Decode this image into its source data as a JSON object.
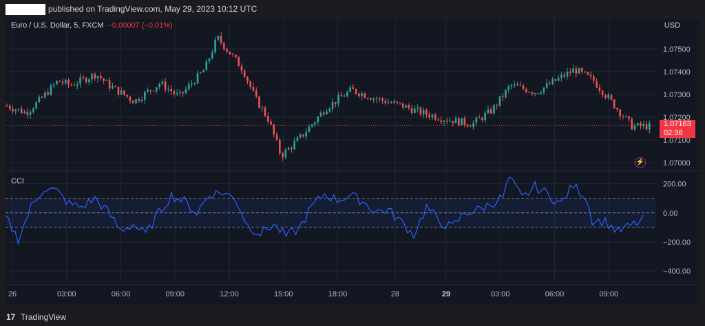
{
  "header": {
    "published_text": "published on TradingView.com, May 29, 2023 10:12 UTC"
  },
  "legend": {
    "symbol": "Euro / U.S. Dollar, 5, FXCM",
    "change": "−0.00007 (−0.01%)",
    "change_color": "#f23645"
  },
  "currency": "USD",
  "price_tag": {
    "price": "1.07163",
    "countdown": "02:36",
    "color": "#f23645"
  },
  "indicator_label": "CCI",
  "footer": {
    "logo_icon": "tradingview-logo-icon",
    "brand": "TradingView"
  },
  "colors": {
    "up": "#26a69a",
    "down": "#ef5350",
    "cci_line": "#2962ff",
    "background": "#131722"
  },
  "chart_data": [
    {
      "type": "candlestick",
      "title": "Euro / U.S. Dollar, 5, FXCM",
      "y_ticks": [
        1.07,
        1.071,
        1.072,
        1.073,
        1.074,
        1.075
      ],
      "y_tick_labels": [
        "1.07000",
        "1.07100",
        "1.07200",
        "1.07300",
        "1.07400",
        "1.07500"
      ],
      "ylim": [
        1.0697,
        1.0763
      ],
      "last_price": 1.07163,
      "x_tick_labels": [
        "26",
        "03:00",
        "06:00",
        "09:00",
        "12:00",
        "15:00",
        "18:00",
        "28",
        "29",
        "03:00",
        "06:00",
        "09:00"
      ],
      "close_path": [
        [
          0,
          1.0725
        ],
        [
          3,
          1.0722
        ],
        [
          5,
          1.0727
        ],
        [
          8,
          1.0736
        ],
        [
          10,
          1.0734
        ],
        [
          14,
          1.0739
        ],
        [
          16,
          1.0734
        ],
        [
          20,
          1.0727
        ],
        [
          24,
          1.0735
        ],
        [
          27,
          1.0729
        ],
        [
          31,
          1.0741
        ],
        [
          33,
          1.0755
        ],
        [
          35,
          1.0748
        ],
        [
          37,
          1.0741
        ],
        [
          39,
          1.0728
        ],
        [
          41,
          1.0719
        ],
        [
          43,
          1.0703
        ],
        [
          46,
          1.0711
        ],
        [
          50,
          1.0724
        ],
        [
          54,
          1.0732
        ],
        [
          58,
          1.0728
        ],
        [
          62,
          1.0725
        ],
        [
          65,
          1.0722
        ],
        [
          69,
          1.0719
        ],
        [
          73,
          1.0717
        ],
        [
          76,
          1.0723
        ],
        [
          79,
          1.0734
        ],
        [
          83,
          1.0731
        ],
        [
          86,
          1.0736
        ],
        [
          89,
          1.0741
        ],
        [
          92,
          1.0736
        ],
        [
          95,
          1.0726
        ],
        [
          98,
          1.0716
        ],
        [
          101,
          1.0716
        ]
      ],
      "grid": true
    },
    {
      "type": "line",
      "title": "CCI",
      "y_ticks": [
        200,
        0,
        -200,
        -400
      ],
      "y_tick_labels": [
        "200.00",
        "0.00",
        "−200.00",
        "−400.00"
      ],
      "ylim": [
        -480,
        260
      ],
      "bands": [
        100,
        0,
        -100
      ],
      "series": [
        {
          "values": [
            [
              0,
              -30
            ],
            [
              2,
              -180
            ],
            [
              4,
              40
            ],
            [
              6,
              170
            ],
            [
              8,
              150
            ],
            [
              10,
              60
            ],
            [
              12,
              40
            ],
            [
              14,
              100
            ],
            [
              16,
              10
            ],
            [
              18,
              -120
            ],
            [
              20,
              -80
            ],
            [
              22,
              -150
            ],
            [
              24,
              0
            ],
            [
              26,
              120
            ],
            [
              28,
              80
            ],
            [
              30,
              0
            ],
            [
              32,
              130
            ],
            [
              34,
              140
            ],
            [
              36,
              100
            ],
            [
              38,
              -90
            ],
            [
              40,
              -140
            ],
            [
              42,
              -80
            ],
            [
              44,
              -160
            ],
            [
              46,
              -110
            ],
            [
              48,
              40
            ],
            [
              50,
              130
            ],
            [
              52,
              90
            ],
            [
              54,
              120
            ],
            [
              56,
              80
            ],
            [
              58,
              10
            ],
            [
              60,
              20
            ],
            [
              62,
              -60
            ],
            [
              64,
              -150
            ],
            [
              66,
              40
            ],
            [
              68,
              -60
            ],
            [
              70,
              -100
            ],
            [
              72,
              0
            ],
            [
              74,
              20
            ],
            [
              76,
              60
            ],
            [
              78,
              110
            ],
            [
              79,
              240
            ],
            [
              81,
              100
            ],
            [
              83,
              180
            ],
            [
              85,
              130
            ],
            [
              87,
              60
            ],
            [
              89,
              190
            ],
            [
              91,
              110
            ],
            [
              92,
              -50
            ],
            [
              94,
              -60
            ],
            [
              96,
              -130
            ],
            [
              98,
              -90
            ],
            [
              100,
              -50
            ]
          ]
        }
      ],
      "grid": true
    }
  ]
}
